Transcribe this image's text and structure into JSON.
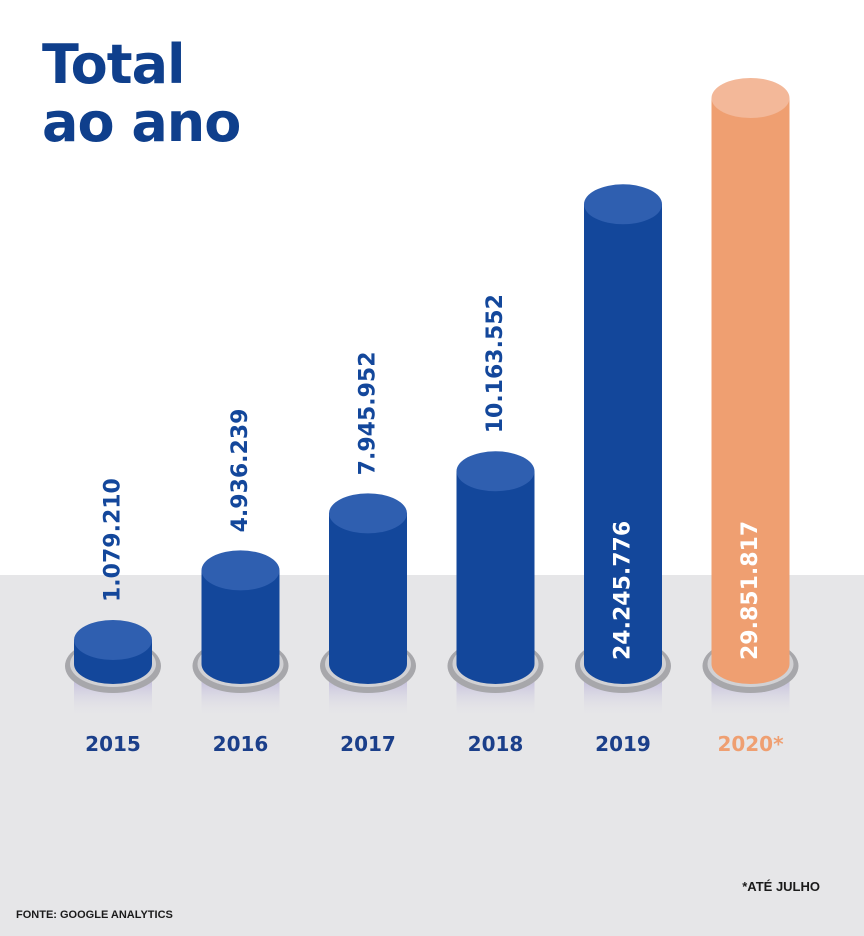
{
  "title_lines": [
    "Total",
    "ao ano"
  ],
  "footnote": "*ATÉ JULHO",
  "source": "FONTE: GOOGLE ANALYTICS",
  "colors": {
    "bar": "#13479b",
    "bar_top": "#2f5fb0",
    "highlight": "#ef9f71",
    "highlight_top": "#f3b899",
    "title": "#0f3f8c",
    "category_label": "#1b3f8a",
    "category_label_highlight": "#ef9f71",
    "floor": "#e6e6e8"
  },
  "chart_data": {
    "type": "bar",
    "categories": [
      "2015",
      "2016",
      "2017",
      "2018",
      "2019",
      "2020*"
    ],
    "values": [
      1079210,
      4936239,
      7945952,
      10163552,
      24245776,
      29851817
    ],
    "value_labels": [
      "1.079.210",
      "4.936.239",
      "7.945.952",
      "10.163.552",
      "24.245.776",
      "29.851.817"
    ],
    "highlight_index": 5,
    "title": "Total ao ano",
    "xlabel": "",
    "ylabel": "",
    "grid": false,
    "legend": "none"
  }
}
